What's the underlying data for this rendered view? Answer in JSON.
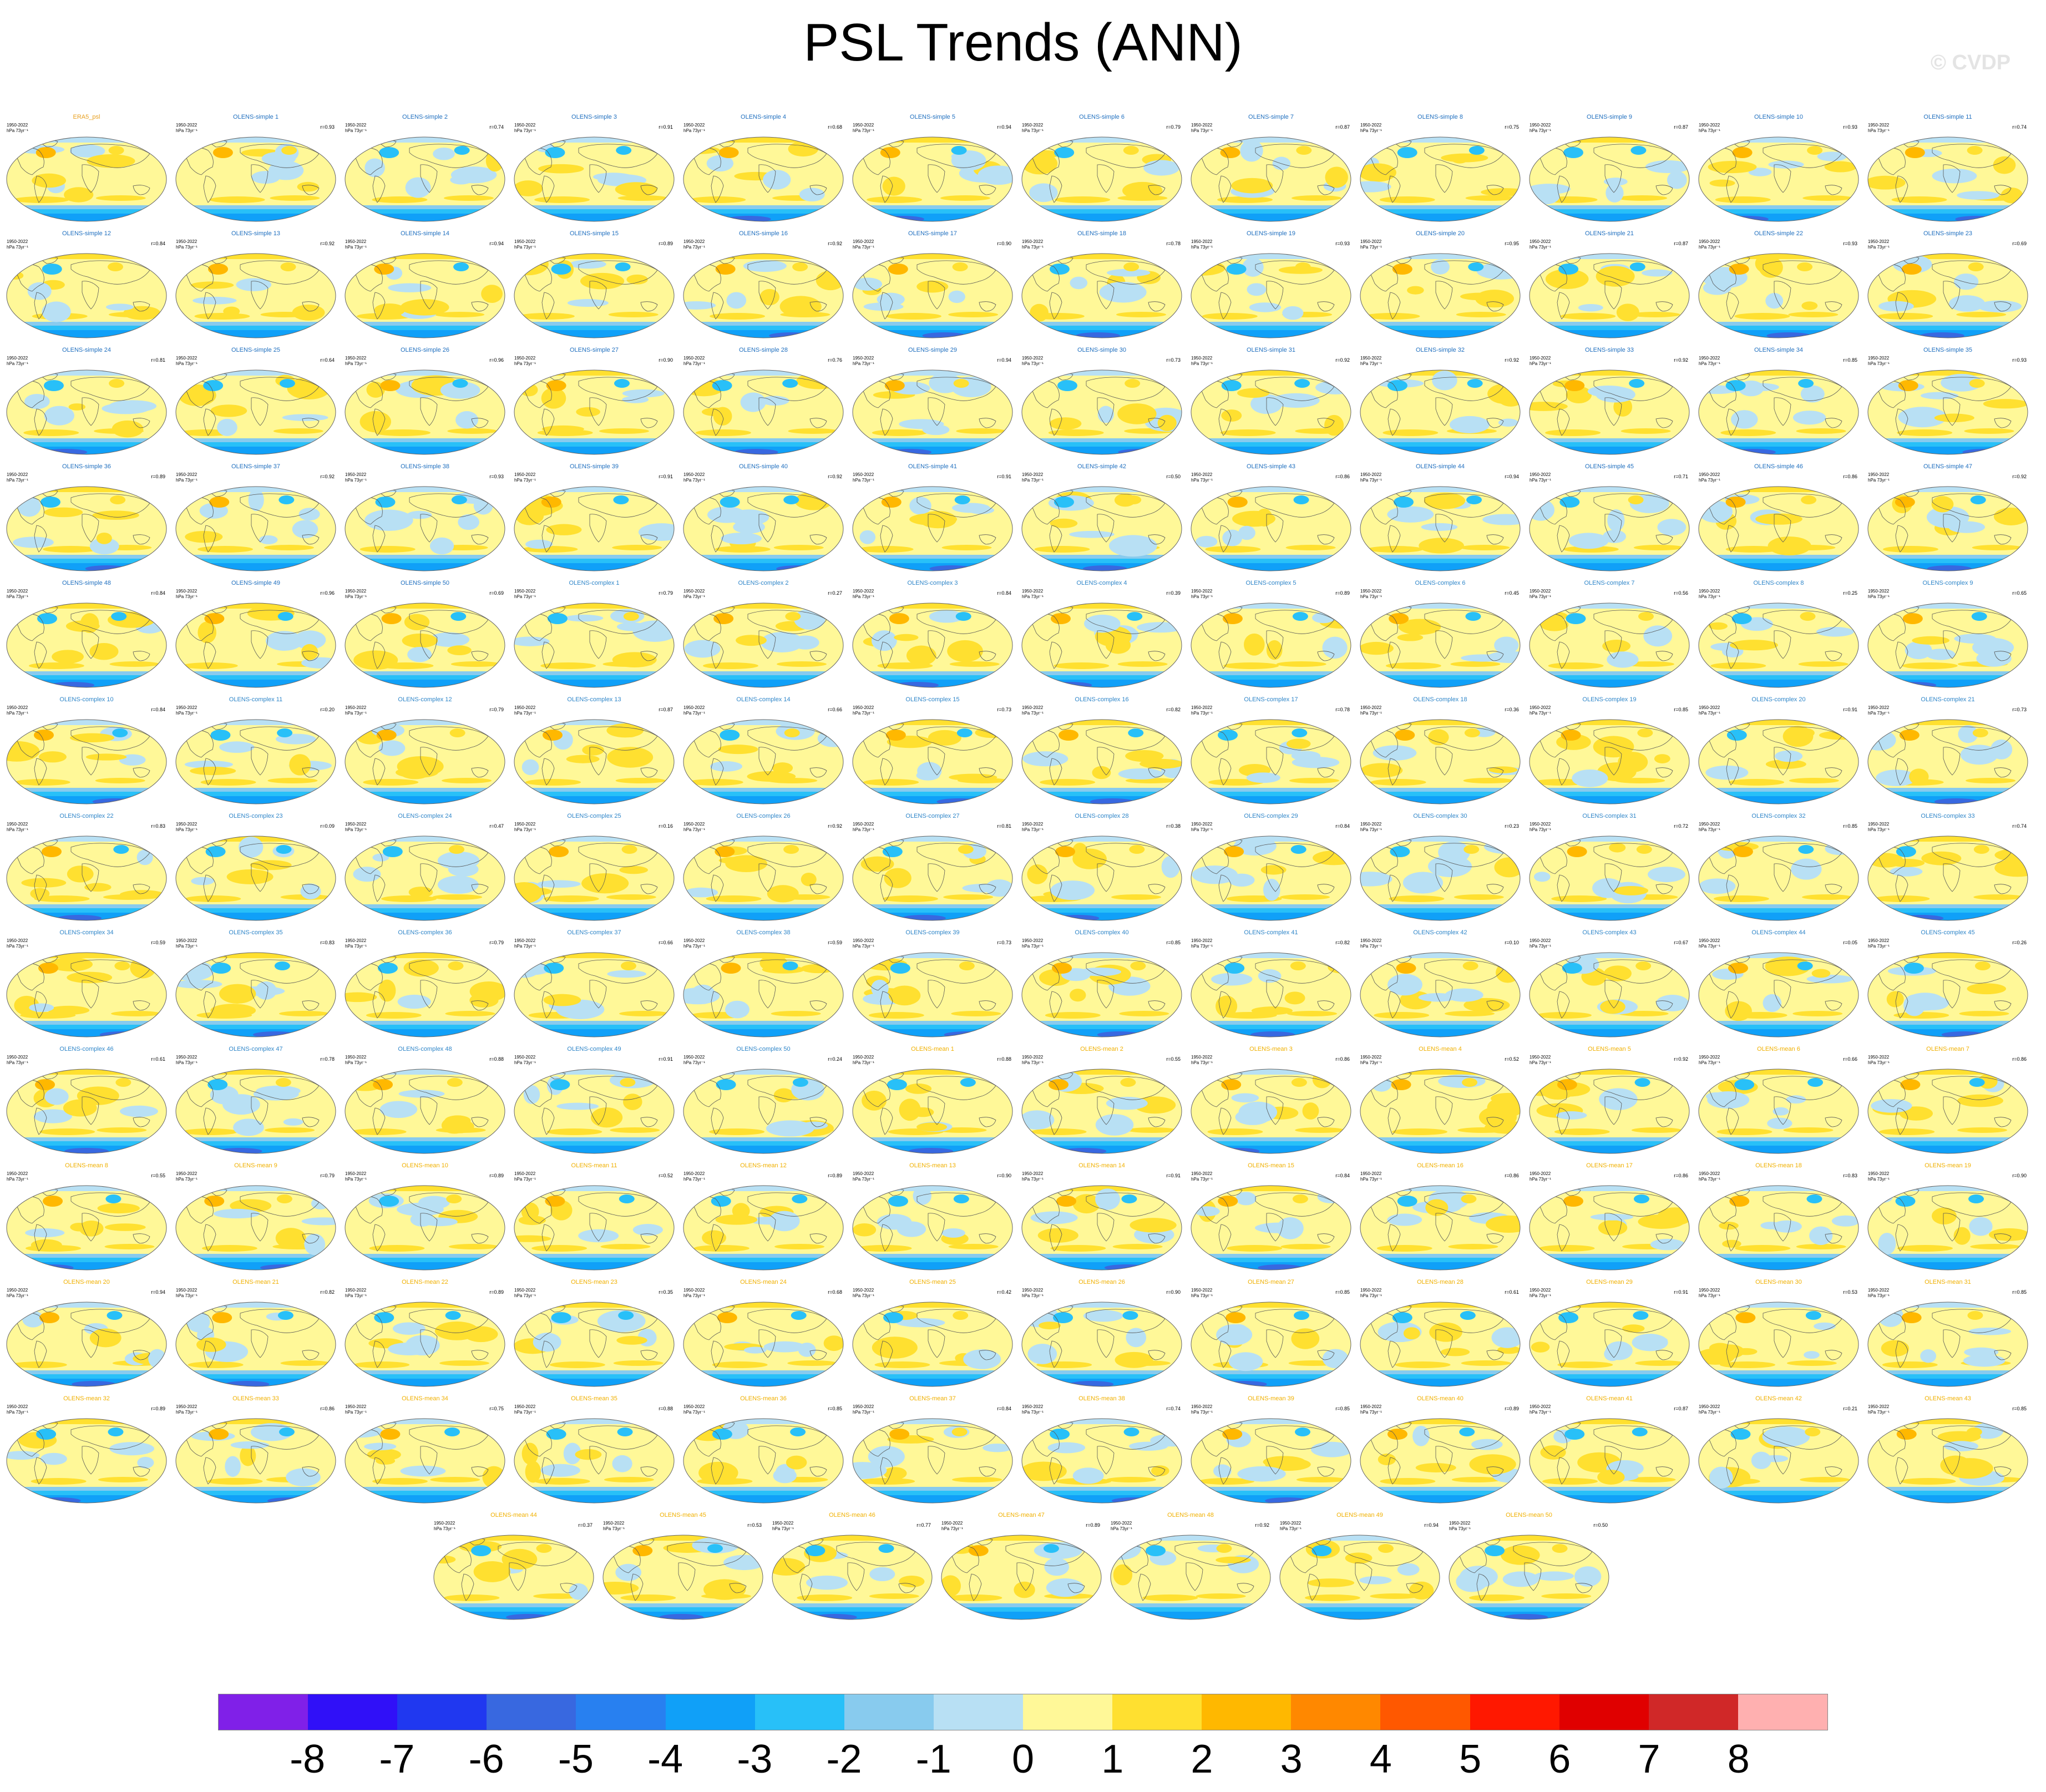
{
  "title": "PSL Trends (ANN)",
  "watermark": "© CVDP",
  "panel_common": {
    "period": "1950-2022",
    "units": "hPa 73yr⁻¹"
  },
  "panels": [
    {
      "title": "ERA5_psl",
      "kind": "obs",
      "corr": ""
    },
    {
      "title": "OLENS-simple 1",
      "kind": "simple",
      "corr": "r=0.93"
    },
    {
      "title": "OLENS-simple 2",
      "kind": "simple",
      "corr": "r=0.74"
    },
    {
      "title": "OLENS-simple 3",
      "kind": "simple",
      "corr": "r=0.91"
    },
    {
      "title": "OLENS-simple 4",
      "kind": "simple",
      "corr": "r=0.68"
    },
    {
      "title": "OLENS-simple 5",
      "kind": "simple",
      "corr": "r=0.94"
    },
    {
      "title": "OLENS-simple 6",
      "kind": "simple",
      "corr": "r=0.79"
    },
    {
      "title": "OLENS-simple 7",
      "kind": "simple",
      "corr": "r=0.87"
    },
    {
      "title": "OLENS-simple 8",
      "kind": "simple",
      "corr": "r=0.75"
    },
    {
      "title": "OLENS-simple 9",
      "kind": "simple",
      "corr": "r=0.87"
    },
    {
      "title": "OLENS-simple 10",
      "kind": "simple",
      "corr": "r=0.93"
    },
    {
      "title": "OLENS-simple 11",
      "kind": "simple",
      "corr": "r=0.74"
    },
    {
      "title": "OLENS-simple 12",
      "kind": "simple",
      "corr": "r=0.84"
    },
    {
      "title": "OLENS-simple 13",
      "kind": "simple",
      "corr": "r=0.92"
    },
    {
      "title": "OLENS-simple 14",
      "kind": "simple",
      "corr": "r=0.94"
    },
    {
      "title": "OLENS-simple 15",
      "kind": "simple",
      "corr": "r=0.89"
    },
    {
      "title": "OLENS-simple 16",
      "kind": "simple",
      "corr": "r=0.92"
    },
    {
      "title": "OLENS-simple 17",
      "kind": "simple",
      "corr": "r=0.90"
    },
    {
      "title": "OLENS-simple 18",
      "kind": "simple",
      "corr": "r=0.78"
    },
    {
      "title": "OLENS-simple 19",
      "kind": "simple",
      "corr": "r=0.93"
    },
    {
      "title": "OLENS-simple 20",
      "kind": "simple",
      "corr": "r=0.95"
    },
    {
      "title": "OLENS-simple 21",
      "kind": "simple",
      "corr": "r=0.87"
    },
    {
      "title": "OLENS-simple 22",
      "kind": "simple",
      "corr": "r=0.93"
    },
    {
      "title": "OLENS-simple 23",
      "kind": "simple",
      "corr": "r=0.69"
    },
    {
      "title": "OLENS-simple 24",
      "kind": "simple",
      "corr": "r=0.81"
    },
    {
      "title": "OLENS-simple 25",
      "kind": "simple",
      "corr": "r=0.64"
    },
    {
      "title": "OLENS-simple 26",
      "kind": "simple",
      "corr": "r=0.96"
    },
    {
      "title": "OLENS-simple 27",
      "kind": "simple",
      "corr": "r=0.90"
    },
    {
      "title": "OLENS-simple 28",
      "kind": "simple",
      "corr": "r=0.76"
    },
    {
      "title": "OLENS-simple 29",
      "kind": "simple",
      "corr": "r=0.94"
    },
    {
      "title": "OLENS-simple 30",
      "kind": "simple",
      "corr": "r=0.73"
    },
    {
      "title": "OLENS-simple 31",
      "kind": "simple",
      "corr": "r=0.92"
    },
    {
      "title": "OLENS-simple 32",
      "kind": "simple",
      "corr": "r=0.92"
    },
    {
      "title": "OLENS-simple 33",
      "kind": "simple",
      "corr": "r=0.92"
    },
    {
      "title": "OLENS-simple 34",
      "kind": "simple",
      "corr": "r=0.85"
    },
    {
      "title": "OLENS-simple 35",
      "kind": "simple",
      "corr": "r=0.93"
    },
    {
      "title": "OLENS-simple 36",
      "kind": "simple",
      "corr": "r=0.89"
    },
    {
      "title": "OLENS-simple 37",
      "kind": "simple",
      "corr": "r=0.92"
    },
    {
      "title": "OLENS-simple 38",
      "kind": "simple",
      "corr": "r=0.93"
    },
    {
      "title": "OLENS-simple 39",
      "kind": "simple",
      "corr": "r=0.91"
    },
    {
      "title": "OLENS-simple 40",
      "kind": "simple",
      "corr": "r=0.92"
    },
    {
      "title": "OLENS-simple 41",
      "kind": "simple",
      "corr": "r=0.91"
    },
    {
      "title": "OLENS-simple 42",
      "kind": "simple",
      "corr": "r=0.50"
    },
    {
      "title": "OLENS-simple 43",
      "kind": "simple",
      "corr": "r=0.86"
    },
    {
      "title": "OLENS-simple 44",
      "kind": "simple",
      "corr": "r=0.94"
    },
    {
      "title": "OLENS-simple 45",
      "kind": "simple",
      "corr": "r=0.71"
    },
    {
      "title": "OLENS-simple 46",
      "kind": "simple",
      "corr": "r=0.86"
    },
    {
      "title": "OLENS-simple 47",
      "kind": "simple",
      "corr": "r=0.92"
    },
    {
      "title": "OLENS-simple 48",
      "kind": "simple",
      "corr": "r=0.84"
    },
    {
      "title": "OLENS-simple 49",
      "kind": "simple",
      "corr": "r=0.96"
    },
    {
      "title": "OLENS-simple 50",
      "kind": "simple",
      "corr": "r=0.69"
    },
    {
      "title": "OLENS-complex 1",
      "kind": "complex",
      "corr": "r=0.79"
    },
    {
      "title": "OLENS-complex 2",
      "kind": "complex",
      "corr": "r=0.27"
    },
    {
      "title": "OLENS-complex 3",
      "kind": "complex",
      "corr": "r=0.84"
    },
    {
      "title": "OLENS-complex 4",
      "kind": "complex",
      "corr": "r=0.39"
    },
    {
      "title": "OLENS-complex 5",
      "kind": "complex",
      "corr": "r=0.89"
    },
    {
      "title": "OLENS-complex 6",
      "kind": "complex",
      "corr": "r=0.45"
    },
    {
      "title": "OLENS-complex 7",
      "kind": "complex",
      "corr": "r=0.56"
    },
    {
      "title": "OLENS-complex 8",
      "kind": "complex",
      "corr": "r=0.25"
    },
    {
      "title": "OLENS-complex 9",
      "kind": "complex",
      "corr": "r=0.65"
    },
    {
      "title": "OLENS-complex 10",
      "kind": "complex",
      "corr": "r=0.84"
    },
    {
      "title": "OLENS-complex 11",
      "kind": "complex",
      "corr": "r=0.20"
    },
    {
      "title": "OLENS-complex 12",
      "kind": "complex",
      "corr": "r=0.79"
    },
    {
      "title": "OLENS-complex 13",
      "kind": "complex",
      "corr": "r=0.87"
    },
    {
      "title": "OLENS-complex 14",
      "kind": "complex",
      "corr": "r=0.66"
    },
    {
      "title": "OLENS-complex 15",
      "kind": "complex",
      "corr": "r=0.73"
    },
    {
      "title": "OLENS-complex 16",
      "kind": "complex",
      "corr": "r=0.82"
    },
    {
      "title": "OLENS-complex 17",
      "kind": "complex",
      "corr": "r=0.78"
    },
    {
      "title": "OLENS-complex 18",
      "kind": "complex",
      "corr": "r=0.36"
    },
    {
      "title": "OLENS-complex 19",
      "kind": "complex",
      "corr": "r=0.85"
    },
    {
      "title": "OLENS-complex 20",
      "kind": "complex",
      "corr": "r=0.91"
    },
    {
      "title": "OLENS-complex 21",
      "kind": "complex",
      "corr": "r=0.73"
    },
    {
      "title": "OLENS-complex 22",
      "kind": "complex",
      "corr": "r=0.83"
    },
    {
      "title": "OLENS-complex 23",
      "kind": "complex",
      "corr": "r=0.09"
    },
    {
      "title": "OLENS-complex 24",
      "kind": "complex",
      "corr": "r=0.47"
    },
    {
      "title": "OLENS-complex 25",
      "kind": "complex",
      "corr": "r=0.16"
    },
    {
      "title": "OLENS-complex 26",
      "kind": "complex",
      "corr": "r=0.92"
    },
    {
      "title": "OLENS-complex 27",
      "kind": "complex",
      "corr": "r=0.81"
    },
    {
      "title": "OLENS-complex 28",
      "kind": "complex",
      "corr": "r=0.38"
    },
    {
      "title": "OLENS-complex 29",
      "kind": "complex",
      "corr": "r=0.84"
    },
    {
      "title": "OLENS-complex 30",
      "kind": "complex",
      "corr": "r=0.23"
    },
    {
      "title": "OLENS-complex 31",
      "kind": "complex",
      "corr": "r=0.72"
    },
    {
      "title": "OLENS-complex 32",
      "kind": "complex",
      "corr": "r=0.85"
    },
    {
      "title": "OLENS-complex 33",
      "kind": "complex",
      "corr": "r=0.74"
    },
    {
      "title": "OLENS-complex 34",
      "kind": "complex",
      "corr": "r=0.59"
    },
    {
      "title": "OLENS-complex 35",
      "kind": "complex",
      "corr": "r=0.83"
    },
    {
      "title": "OLENS-complex 36",
      "kind": "complex",
      "corr": "r=0.79"
    },
    {
      "title": "OLENS-complex 37",
      "kind": "complex",
      "corr": "r=0.66"
    },
    {
      "title": "OLENS-complex 38",
      "kind": "complex",
      "corr": "r=0.59"
    },
    {
      "title": "OLENS-complex 39",
      "kind": "complex",
      "corr": "r=0.73"
    },
    {
      "title": "OLENS-complex 40",
      "kind": "complex",
      "corr": "r=0.85"
    },
    {
      "title": "OLENS-complex 41",
      "kind": "complex",
      "corr": "r=0.82"
    },
    {
      "title": "OLENS-complex 42",
      "kind": "complex",
      "corr": "r=0.10"
    },
    {
      "title": "OLENS-complex 43",
      "kind": "complex",
      "corr": "r=0.67"
    },
    {
      "title": "OLENS-complex 44",
      "kind": "complex",
      "corr": "r=0.05"
    },
    {
      "title": "OLENS-complex 45",
      "kind": "complex",
      "corr": "r=0.26"
    },
    {
      "title": "OLENS-complex 46",
      "kind": "complex",
      "corr": "r=0.61"
    },
    {
      "title": "OLENS-complex 47",
      "kind": "complex",
      "corr": "r=0.78"
    },
    {
      "title": "OLENS-complex 48",
      "kind": "complex",
      "corr": "r=0.88"
    },
    {
      "title": "OLENS-complex 49",
      "kind": "complex",
      "corr": "r=0.91"
    },
    {
      "title": "OLENS-complex 50",
      "kind": "complex",
      "corr": "r=0.24"
    },
    {
      "title": "OLENS-mean 1",
      "kind": "mean",
      "corr": "r=0.88"
    },
    {
      "title": "OLENS-mean 2",
      "kind": "mean",
      "corr": "r=0.55"
    },
    {
      "title": "OLENS-mean 3",
      "kind": "mean",
      "corr": "r=0.86"
    },
    {
      "title": "OLENS-mean 4",
      "kind": "mean",
      "corr": "r=0.52"
    },
    {
      "title": "OLENS-mean 5",
      "kind": "mean",
      "corr": "r=0.92"
    },
    {
      "title": "OLENS-mean 6",
      "kind": "mean",
      "corr": "r=0.66"
    },
    {
      "title": "OLENS-mean 7",
      "kind": "mean",
      "corr": "r=0.86"
    },
    {
      "title": "OLENS-mean 8",
      "kind": "mean",
      "corr": "r=0.55"
    },
    {
      "title": "OLENS-mean 9",
      "kind": "mean",
      "corr": "r=0.79"
    },
    {
      "title": "OLENS-mean 10",
      "kind": "mean",
      "corr": "r=0.89"
    },
    {
      "title": "OLENS-mean 11",
      "kind": "mean",
      "corr": "r=0.52"
    },
    {
      "title": "OLENS-mean 12",
      "kind": "mean",
      "corr": "r=0.89"
    },
    {
      "title": "OLENS-mean 13",
      "kind": "mean",
      "corr": "r=0.90"
    },
    {
      "title": "OLENS-mean 14",
      "kind": "mean",
      "corr": "r=0.91"
    },
    {
      "title": "OLENS-mean 15",
      "kind": "mean",
      "corr": "r=0.84"
    },
    {
      "title": "OLENS-mean 16",
      "kind": "mean",
      "corr": "r=0.86"
    },
    {
      "title": "OLENS-mean 17",
      "kind": "mean",
      "corr": "r=0.86"
    },
    {
      "title": "OLENS-mean 18",
      "kind": "mean",
      "corr": "r=0.83"
    },
    {
      "title": "OLENS-mean 19",
      "kind": "mean",
      "corr": "r=0.90"
    },
    {
      "title": "OLENS-mean 20",
      "kind": "mean",
      "corr": "r=0.94"
    },
    {
      "title": "OLENS-mean 21",
      "kind": "mean",
      "corr": "r=0.82"
    },
    {
      "title": "OLENS-mean 22",
      "kind": "mean",
      "corr": "r=0.89"
    },
    {
      "title": "OLENS-mean 23",
      "kind": "mean",
      "corr": "r=0.35"
    },
    {
      "title": "OLENS-mean 24",
      "kind": "mean",
      "corr": "r=0.68"
    },
    {
      "title": "OLENS-mean 25",
      "kind": "mean",
      "corr": "r=0.42"
    },
    {
      "title": "OLENS-mean 26",
      "kind": "mean",
      "corr": "r=0.90"
    },
    {
      "title": "OLENS-mean 27",
      "kind": "mean",
      "corr": "r=0.85"
    },
    {
      "title": "OLENS-mean 28",
      "kind": "mean",
      "corr": "r=0.61"
    },
    {
      "title": "OLENS-mean 29",
      "kind": "mean",
      "corr": "r=0.91"
    },
    {
      "title": "OLENS-mean 30",
      "kind": "mean",
      "corr": "r=0.53"
    },
    {
      "title": "OLENS-mean 31",
      "kind": "mean",
      "corr": "r=0.85"
    },
    {
      "title": "OLENS-mean 32",
      "kind": "mean",
      "corr": "r=0.89"
    },
    {
      "title": "OLENS-mean 33",
      "kind": "mean",
      "corr": "r=0.86"
    },
    {
      "title": "OLENS-mean 34",
      "kind": "mean",
      "corr": "r=0.75"
    },
    {
      "title": "OLENS-mean 35",
      "kind": "mean",
      "corr": "r=0.88"
    },
    {
      "title": "OLENS-mean 36",
      "kind": "mean",
      "corr": "r=0.85"
    },
    {
      "title": "OLENS-mean 37",
      "kind": "mean",
      "corr": "r=0.84"
    },
    {
      "title": "OLENS-mean 38",
      "kind": "mean",
      "corr": "r=0.74"
    },
    {
      "title": "OLENS-mean 39",
      "kind": "mean",
      "corr": "r=0.85"
    },
    {
      "title": "OLENS-mean 40",
      "kind": "mean",
      "corr": "r=0.89"
    },
    {
      "title": "OLENS-mean 41",
      "kind": "mean",
      "corr": "r=0.87"
    },
    {
      "title": "OLENS-mean 42",
      "kind": "mean",
      "corr": "r=0.21"
    },
    {
      "title": "OLENS-mean 43",
      "kind": "mean",
      "corr": "r=0.85"
    },
    {
      "title": "OLENS-mean 44",
      "kind": "mean",
      "corr": "r=0.37"
    },
    {
      "title": "OLENS-mean 45",
      "kind": "mean",
      "corr": "r=0.53"
    },
    {
      "title": "OLENS-mean 46",
      "kind": "mean",
      "corr": "r=0.77"
    },
    {
      "title": "OLENS-mean 47",
      "kind": "mean",
      "corr": "r=0.89"
    },
    {
      "title": "OLENS-mean 48",
      "kind": "mean",
      "corr": "r=0.92"
    },
    {
      "title": "OLENS-mean 49",
      "kind": "mean",
      "corr": "r=0.94"
    },
    {
      "title": "OLENS-mean 50",
      "kind": "mean",
      "corr": "r=0.50"
    }
  ],
  "colorbar": {
    "labels": [
      "-8",
      "-7",
      "-6",
      "-5",
      "-4",
      "-3",
      "-2",
      "-1",
      "0",
      "1",
      "2",
      "3",
      "4",
      "5",
      "6",
      "7",
      "8"
    ],
    "colors": [
      "#8020e8",
      "#3010f8",
      "#2038f0",
      "#3868e0",
      "#2880f0",
      "#10a0f8",
      "#28c0f8",
      "#88cbee",
      "#b8e0f4",
      "#fff898",
      "#ffe030",
      "#ffb800",
      "#ff8800",
      "#ff5800",
      "#ff1800",
      "#e00000",
      "#d02828",
      "#ffb0b0"
    ]
  }
}
